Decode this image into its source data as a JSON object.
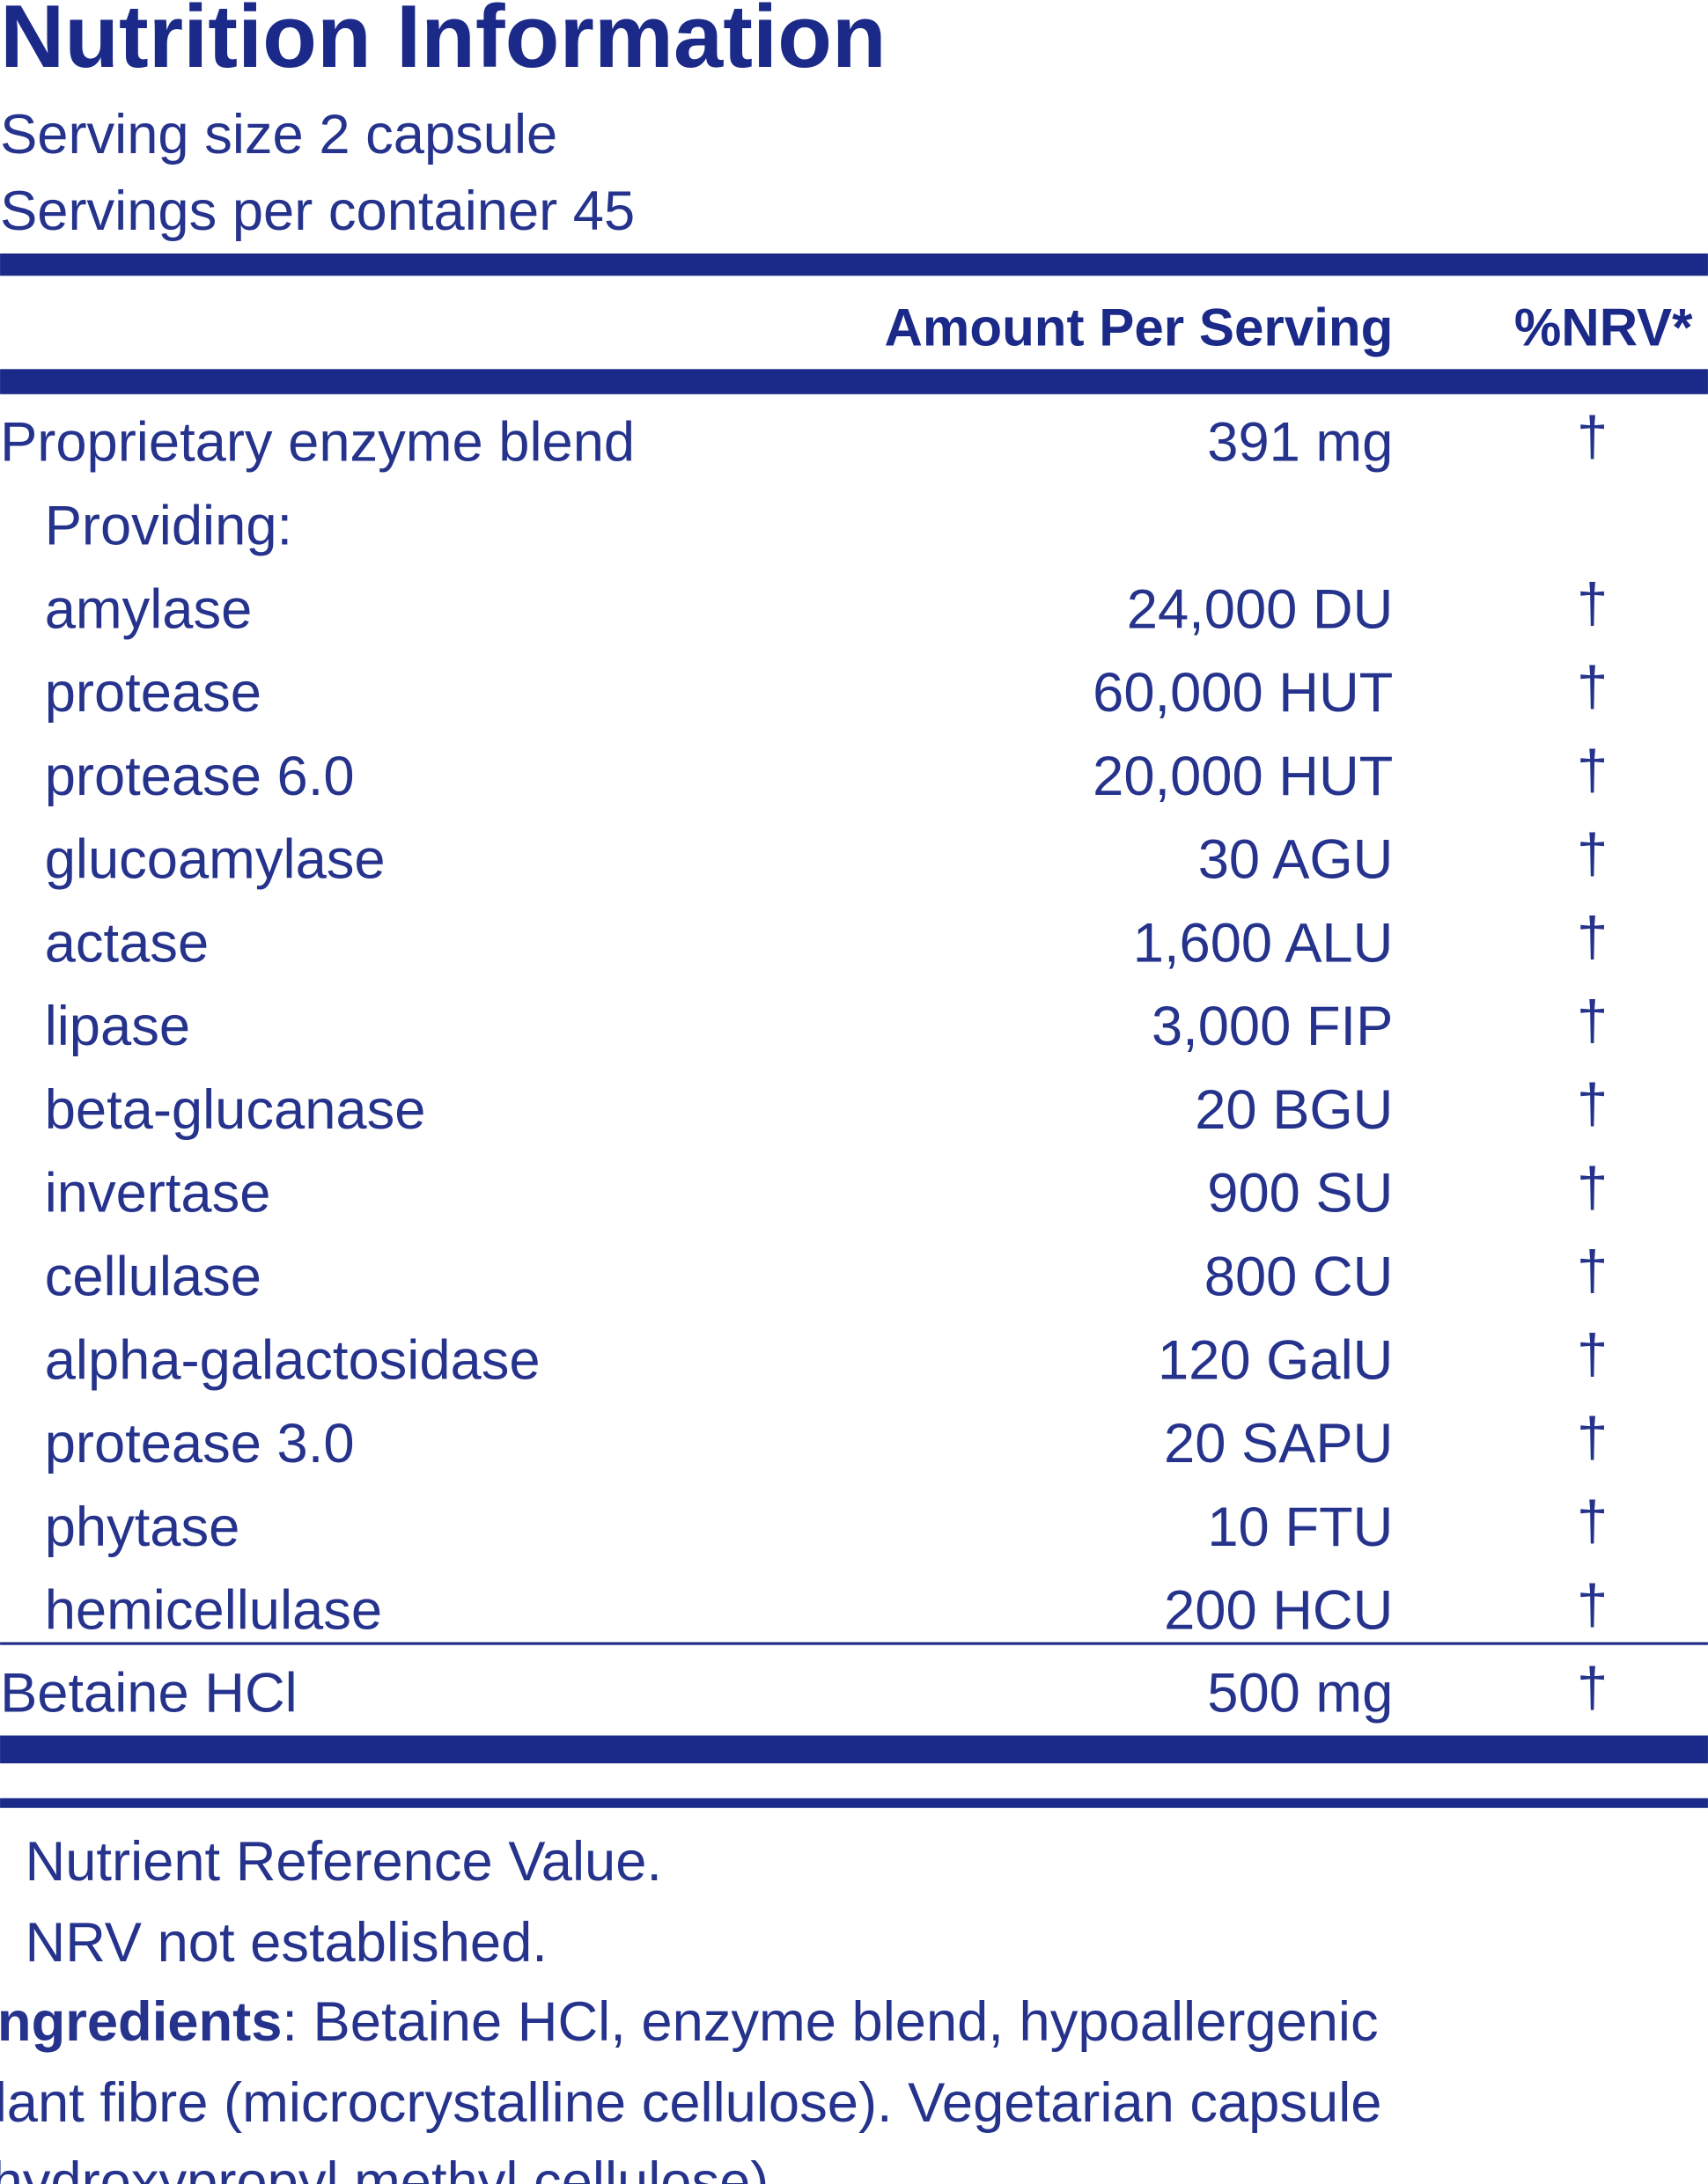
{
  "header": {
    "title": "Nutrition Information",
    "serving_size": "Serving size  2 capsule",
    "servings_per_container": "Servings per container  45"
  },
  "table": {
    "columns": [
      "Amount Per Serving",
      "%NRV*"
    ],
    "rows": [
      {
        "name": "Proprietary enzyme blend",
        "amount": "391 mg",
        "nrv": "†"
      },
      {
        "name": "Providing:"
      },
      {
        "name": "amylase",
        "amount": "24,000 DU",
        "nrv": "†"
      },
      {
        "name": "protease",
        "amount": "60,000 HUT",
        "nrv": "†"
      },
      {
        "name": "protease 6.0",
        "amount": "20,000 HUT",
        "nrv": "†"
      },
      {
        "name": "glucoamylase",
        "amount": "30 AGU",
        "nrv": "†"
      },
      {
        "name": "actase",
        "amount": "1,600 ALU",
        "nrv": "†"
      },
      {
        "name": "lipase",
        "amount": "3,000 FIP",
        "nrv": "†"
      },
      {
        "name": "beta-glucanase",
        "amount": "20 BGU",
        "nrv": "†"
      },
      {
        "name": "invertase",
        "amount": "900 SU",
        "nrv": "†"
      },
      {
        "name": "cellulase",
        "amount": "800 CU",
        "nrv": "†"
      },
      {
        "name": "alpha-galactosidase",
        "amount": "120 GalU",
        "nrv": "†"
      },
      {
        "name": "protease 3.0",
        "amount": "20 SAPU",
        "nrv": "†"
      },
      {
        "name": "phytase",
        "amount": "10 FTU",
        "nrv": "†"
      },
      {
        "name": "hemicellulase",
        "amount": "200 HCU",
        "nrv": "†"
      },
      {
        "name": "Betaine HCl",
        "amount": "500 mg",
        "nrv": "†"
      }
    ]
  },
  "footnotes": [
    "Nutrient Reference Value.",
    "NRV not established."
  ],
  "ingredients": {
    "label": "ngredients",
    "lines": [
      ": Betaine HCl, enzyme blend, hypoallergenic",
      "lant fibre (microcrystalline cellulose). Vegetarian capsule",
      "hydroxypropyl methyl cellulose)."
    ]
  }
}
